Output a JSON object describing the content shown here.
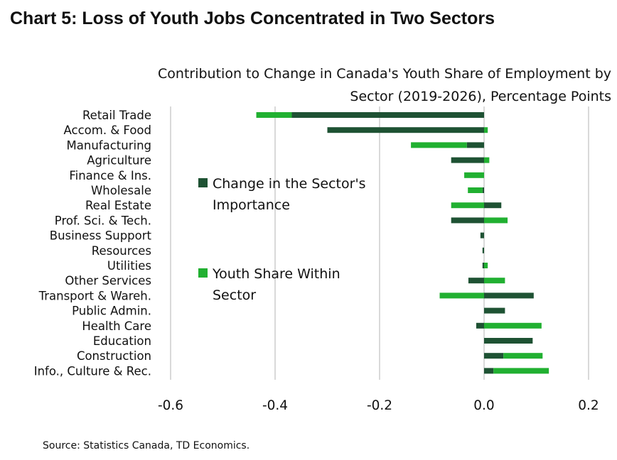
{
  "chart_data": {
    "type": "bar",
    "orientation": "horizontal",
    "stacked": true,
    "title": "Chart 5: Loss of Youth Jobs Concentrated in Two Sectors",
    "subtitle": "Contribution to Change in Canada's Youth Share of Employment by Sector (2019-2026), Percentage Points",
    "source": "Source: Statistics Canada, TD Economics.",
    "categories": [
      "Retail Trade",
      "Accom. & Food",
      "Manufacturing",
      "Agriculture",
      "Finance & Ins.",
      "Wholesale",
      "Real Estate",
      "Prof. Sci. & Tech.",
      "Business Support",
      "Resources",
      "Utilities",
      "Other Services",
      "Transport & Wareh.",
      "Public Admin.",
      "Health Care",
      "Education",
      "Construction",
      "Info., Culture & Rec."
    ],
    "series": [
      {
        "name": "Change in the Sector's Importance",
        "color": "#1e5233",
        "values": [
          -0.368,
          -0.3,
          -0.033,
          -0.063,
          0.0,
          -0.003,
          0.033,
          -0.063,
          -0.007,
          -0.003,
          -0.003,
          -0.03,
          0.095,
          0.04,
          -0.015,
          0.093,
          0.037,
          0.018
        ]
      },
      {
        "name": "Youth Share Within Sector",
        "color": "#21b031",
        "values": [
          -0.068,
          0.007,
          -0.107,
          0.01,
          -0.038,
          -0.028,
          -0.063,
          0.045,
          0.0,
          0.0,
          0.007,
          0.04,
          -0.085,
          0.0,
          0.11,
          0.0,
          0.075,
          0.106
        ]
      }
    ],
    "xlim": [
      -0.6,
      0.2
    ],
    "xticks": [
      "-0.6",
      "-0.4",
      "-0.2",
      "0.0",
      "0.2"
    ],
    "grid": true
  },
  "colors": {
    "grid": "#d9d9d9",
    "text": "#111111"
  }
}
